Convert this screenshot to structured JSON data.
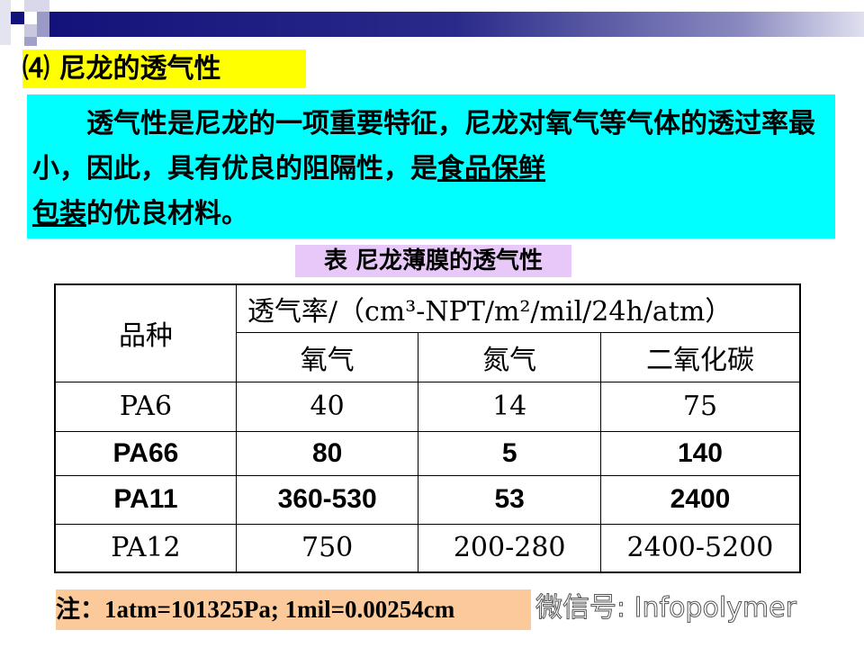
{
  "title": "⑷ 尼龙的透气性",
  "intro": {
    "text1": "　　透气性是尼龙的一项重要特征，尼龙对氧气等气体的透过率最小，因此，具有优良的阻隔性，是",
    "underline1": "食品保鲜",
    "br": "",
    "underline2": "包装",
    "text2": "的优良材料。"
  },
  "caption": "表  尼龙薄膜的透气性",
  "table": {
    "header_variety": "品种",
    "header_rate": "透气率/（cm³-NPT/m²/mil/24h/atm）",
    "gases": [
      "氧气",
      "氮气",
      "二氧化碳"
    ],
    "rows": [
      {
        "name": "PA6",
        "values": [
          "40",
          "14",
          "75"
        ],
        "bold": false
      },
      {
        "name": "PA66",
        "values": [
          "80",
          "5",
          "140"
        ],
        "bold": true
      },
      {
        "name": "PA11",
        "values": [
          "360-530",
          "53",
          "2400"
        ],
        "bold": true
      },
      {
        "name": "PA12",
        "values": [
          "750",
          "200-280",
          "2400-5200"
        ],
        "bold": false
      }
    ]
  },
  "note": "注：1atm=101325Pa; 1mil=0.00254cm",
  "watermark": "微信号: Infopolymer",
  "colors": {
    "title_bg": "#ffff00",
    "intro_bg": "#00ffff",
    "caption_bg": "#e8c8f8",
    "note_bg": "#fbc99a",
    "bar": "#12127a"
  }
}
